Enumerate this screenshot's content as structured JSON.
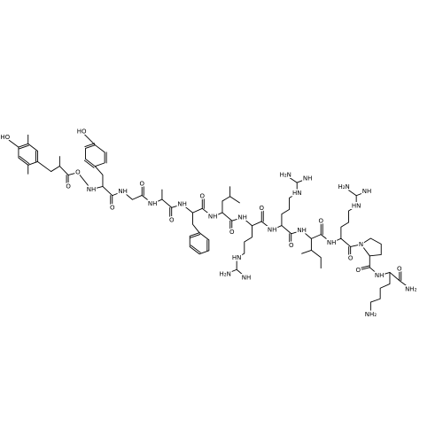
{
  "labels": [
    "HO",
    "O",
    "O",
    "HO",
    "NH",
    "O",
    "NH",
    "O",
    "NH",
    "O",
    "NH",
    "O",
    "NH",
    "O",
    "NH",
    "HN",
    "NH",
    "H₂N",
    "O",
    "NH",
    "HN",
    "NH",
    "H₂N",
    "O",
    "NH",
    "O",
    "NH",
    "HN",
    "NH",
    "H₂N",
    "O",
    "N",
    "O",
    "NH",
    "O",
    "NH₂",
    "NH₂"
  ]
}
